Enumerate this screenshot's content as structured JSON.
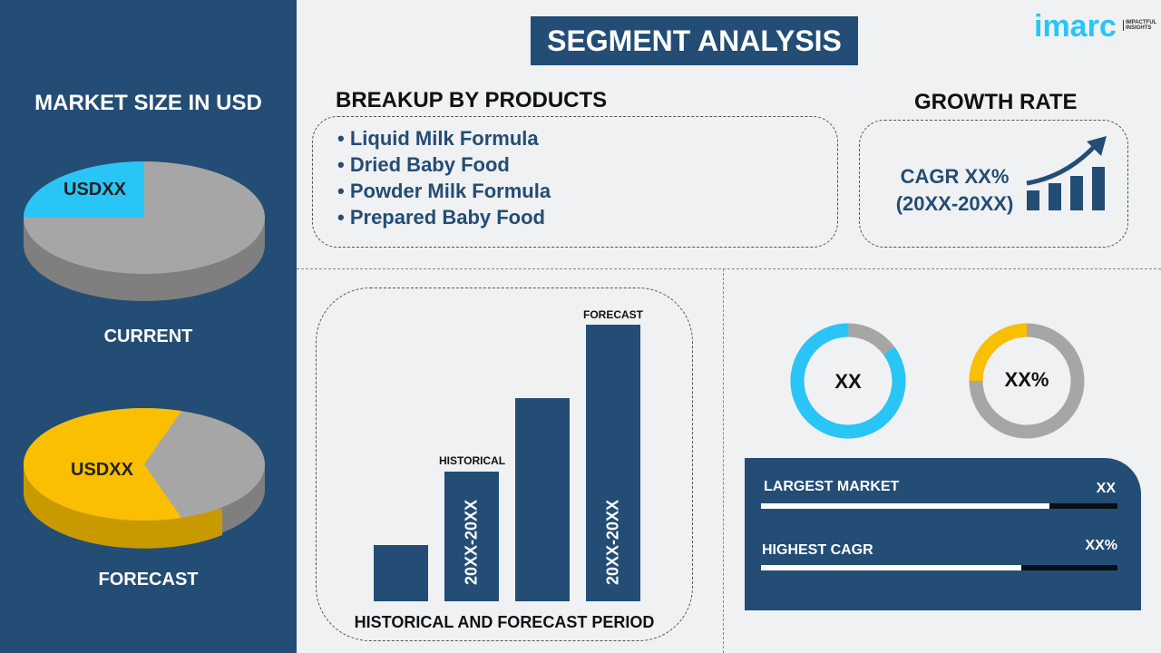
{
  "title": "SEGMENT ANALYSIS",
  "logo": {
    "text": "imarc",
    "tagline": "IMPACTFUL INSIGHTS"
  },
  "left": {
    "heading": "MARKET SIZE IN USD",
    "current": {
      "label": "CURRENT",
      "value": "USDXX",
      "share": 0.25
    },
    "forecast": {
      "label": "FORECAST",
      "value": "USDXX",
      "share": 0.6
    }
  },
  "products": {
    "heading": "BREAKUP BY PRODUCTS",
    "items": [
      "Liquid Milk Formula",
      "Dried Baby Food",
      "Powder Milk Formula",
      "Prepared Baby Food"
    ]
  },
  "growth": {
    "heading": "GROWTH RATE",
    "line1": "CAGR XX%",
    "line2": "(20XX-20XX)"
  },
  "bars": {
    "footer": "HISTORICAL AND FORECAST PERIOD",
    "historical_label": "HISTORICAL",
    "forecast_label": "FORECAST",
    "historical_period": "20XX-20XX",
    "forecast_period": "20XX-20XX"
  },
  "donuts": [
    {
      "value": "XX",
      "share": 0.85,
      "color": "#29c5f6"
    },
    {
      "value": "XX%",
      "share": 0.25,
      "color": "#f9bf00"
    }
  ],
  "kpis": [
    {
      "label": "LARGEST MARKET",
      "value": "XX",
      "progress": 0.81
    },
    {
      "label": "HIGHEST CAGR",
      "value": "XX%",
      "progress": 0.73
    }
  ],
  "colors": {
    "navy": "#234d75",
    "cyan": "#29c5f6",
    "yellow": "#f9bf00",
    "grey": "#a6a6a6"
  }
}
